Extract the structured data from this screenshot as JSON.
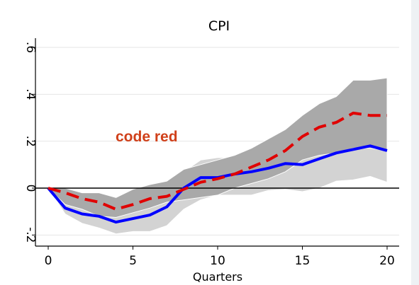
{
  "chart_data": {
    "type": "line",
    "title": "CPI",
    "xlabel": "Quarters",
    "ylabel": "",
    "xlim": [
      0,
      20
    ],
    "ylim": [
      -0.23,
      0.64
    ],
    "x_ticks": [
      0,
      5,
      10,
      15,
      20
    ],
    "x_tick_labels": [
      "0",
      "5",
      "10",
      "15",
      "20"
    ],
    "y_ticks": [
      -0.2,
      0,
      0.2,
      0.4,
      0.6
    ],
    "y_tick_labels": [
      "-.2",
      "0",
      ".2",
      ".4",
      ".6"
    ],
    "grid": true,
    "zero_line": 0,
    "annotation": {
      "text": "code red",
      "color": "#d0401a"
    },
    "x": [
      0,
      1,
      2,
      3,
      4,
      5,
      6,
      7,
      8,
      9,
      10,
      11,
      12,
      13,
      14,
      15,
      16,
      17,
      18,
      19,
      20
    ],
    "series": [
      {
        "style": "solid",
        "color": "#0000ff",
        "values": [
          0,
          -0.085,
          -0.11,
          -0.12,
          -0.145,
          -0.13,
          -0.115,
          -0.08,
          0.0,
          0.045,
          0.045,
          0.06,
          0.07,
          0.085,
          0.105,
          0.1,
          0.125,
          0.15,
          0.165,
          0.18,
          0.16
        ]
      },
      {
        "style": "dashed",
        "color": "#e00000",
        "values": [
          0,
          -0.02,
          -0.045,
          -0.06,
          -0.09,
          -0.07,
          -0.045,
          -0.035,
          -0.005,
          0.025,
          0.04,
          0.06,
          0.09,
          0.12,
          0.16,
          0.22,
          0.26,
          0.28,
          0.32,
          0.31,
          0.31
        ]
      }
    ],
    "bands": [
      {
        "color": "#d3d3d3",
        "lower": [
          0,
          -0.11,
          -0.15,
          -0.17,
          -0.195,
          -0.185,
          -0.185,
          -0.16,
          -0.09,
          -0.05,
          -0.03,
          -0.03,
          -0.03,
          -0.01,
          -0.005,
          -0.015,
          0.0,
          0.03,
          0.035,
          0.05,
          0.025
        ],
        "upper": [
          0,
          -0.02,
          -0.04,
          -0.06,
          -0.07,
          -0.05,
          -0.035,
          -0.01,
          0.07,
          0.12,
          0.13,
          0.13,
          0.15,
          0.17,
          0.19,
          0.22,
          0.24,
          0.26,
          0.27,
          0.27,
          0.26
        ]
      },
      {
        "color": "#a9a9a9",
        "lower": [
          0,
          -0.07,
          -0.09,
          -0.12,
          -0.125,
          -0.105,
          -0.085,
          -0.06,
          -0.05,
          -0.04,
          -0.03,
          0.0,
          0.02,
          0.04,
          0.07,
          0.12,
          0.14,
          0.15,
          0.17,
          0.17,
          0.16
        ],
        "upper": [
          0,
          0.0,
          -0.02,
          -0.02,
          -0.04,
          -0.005,
          0.015,
          0.03,
          0.08,
          0.1,
          0.12,
          0.14,
          0.17,
          0.21,
          0.25,
          0.31,
          0.36,
          0.39,
          0.46,
          0.46,
          0.47
        ]
      }
    ]
  }
}
